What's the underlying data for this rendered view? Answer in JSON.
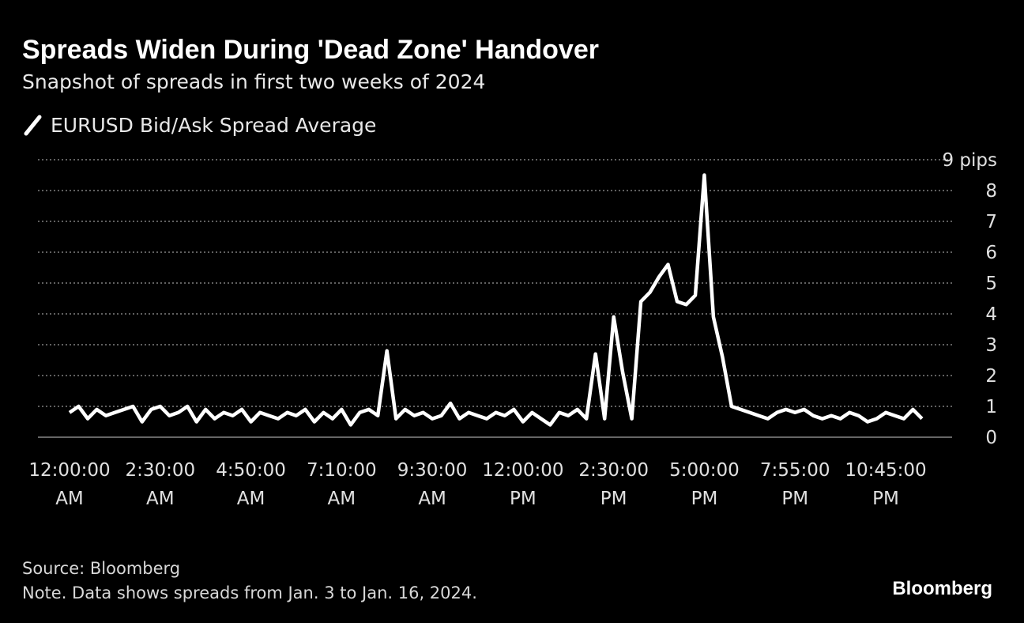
{
  "chart_data": {
    "type": "line",
    "title": "Spreads Widen During 'Dead Zone' Handover",
    "subtitle": "Snapshot of spreads in first two weeks of 2024",
    "source": "Source: Bloomberg",
    "note": "Note. Data shows spreads from Jan. 3 to Jan. 16, 2024.",
    "brand": "Bloomberg",
    "categories": [
      "12:00:00 AM",
      null,
      null,
      null,
      null,
      null,
      null,
      null,
      null,
      null,
      "2:30:00 AM",
      null,
      null,
      null,
      null,
      null,
      null,
      null,
      null,
      null,
      "4:50:00 AM",
      null,
      null,
      null,
      null,
      null,
      null,
      null,
      null,
      null,
      "7:10:00 AM",
      null,
      null,
      null,
      null,
      null,
      null,
      null,
      null,
      null,
      "9:30:00 AM",
      null,
      null,
      null,
      null,
      null,
      null,
      null,
      null,
      null,
      "12:00:00 PM",
      null,
      null,
      null,
      null,
      null,
      null,
      null,
      null,
      null,
      "2:30:00 PM",
      null,
      null,
      null,
      null,
      null,
      null,
      null,
      null,
      null,
      "5:00:00 PM",
      null,
      null,
      null,
      null,
      null,
      null,
      null,
      null,
      null,
      "7:55:00 PM",
      null,
      null,
      null,
      null,
      null,
      null,
      null,
      null,
      null,
      "10:45:00 PM",
      null,
      null,
      null,
      null
    ],
    "series": [
      {
        "name": "EURUSD Bid/Ask Spread Average",
        "color": "#ffffff",
        "values": [
          0.8,
          1.0,
          0.6,
          0.9,
          0.7,
          0.8,
          0.9,
          1.0,
          0.5,
          0.9,
          1.0,
          0.7,
          0.8,
          1.0,
          0.5,
          0.9,
          0.6,
          0.8,
          0.7,
          0.9,
          0.5,
          0.8,
          0.7,
          0.6,
          0.8,
          0.7,
          0.9,
          0.5,
          0.8,
          0.6,
          0.9,
          0.4,
          0.8,
          0.9,
          0.7,
          2.8,
          0.6,
          0.9,
          0.7,
          0.8,
          0.6,
          0.7,
          1.1,
          0.6,
          0.8,
          0.7,
          0.6,
          0.8,
          0.7,
          0.9,
          0.5,
          0.8,
          0.6,
          0.4,
          0.8,
          0.7,
          0.9,
          0.6,
          2.7,
          0.6,
          3.9,
          2.1,
          0.6,
          4.4,
          4.7,
          5.2,
          5.6,
          4.4,
          4.3,
          4.6,
          8.5,
          3.9,
          2.6,
          1.0,
          0.9,
          0.8,
          0.7,
          0.6,
          0.8,
          0.9,
          0.8,
          0.9,
          0.7,
          0.6,
          0.7,
          0.6,
          0.8,
          0.7,
          0.5,
          0.6,
          0.8,
          0.7,
          0.6,
          0.9,
          0.6
        ]
      }
    ],
    "ylim": [
      0,
      9
    ],
    "yticks": [
      0,
      1,
      2,
      3,
      4,
      5,
      6,
      7,
      8,
      {
        "value": 9,
        "label": "9 pips"
      }
    ],
    "grid": true
  }
}
